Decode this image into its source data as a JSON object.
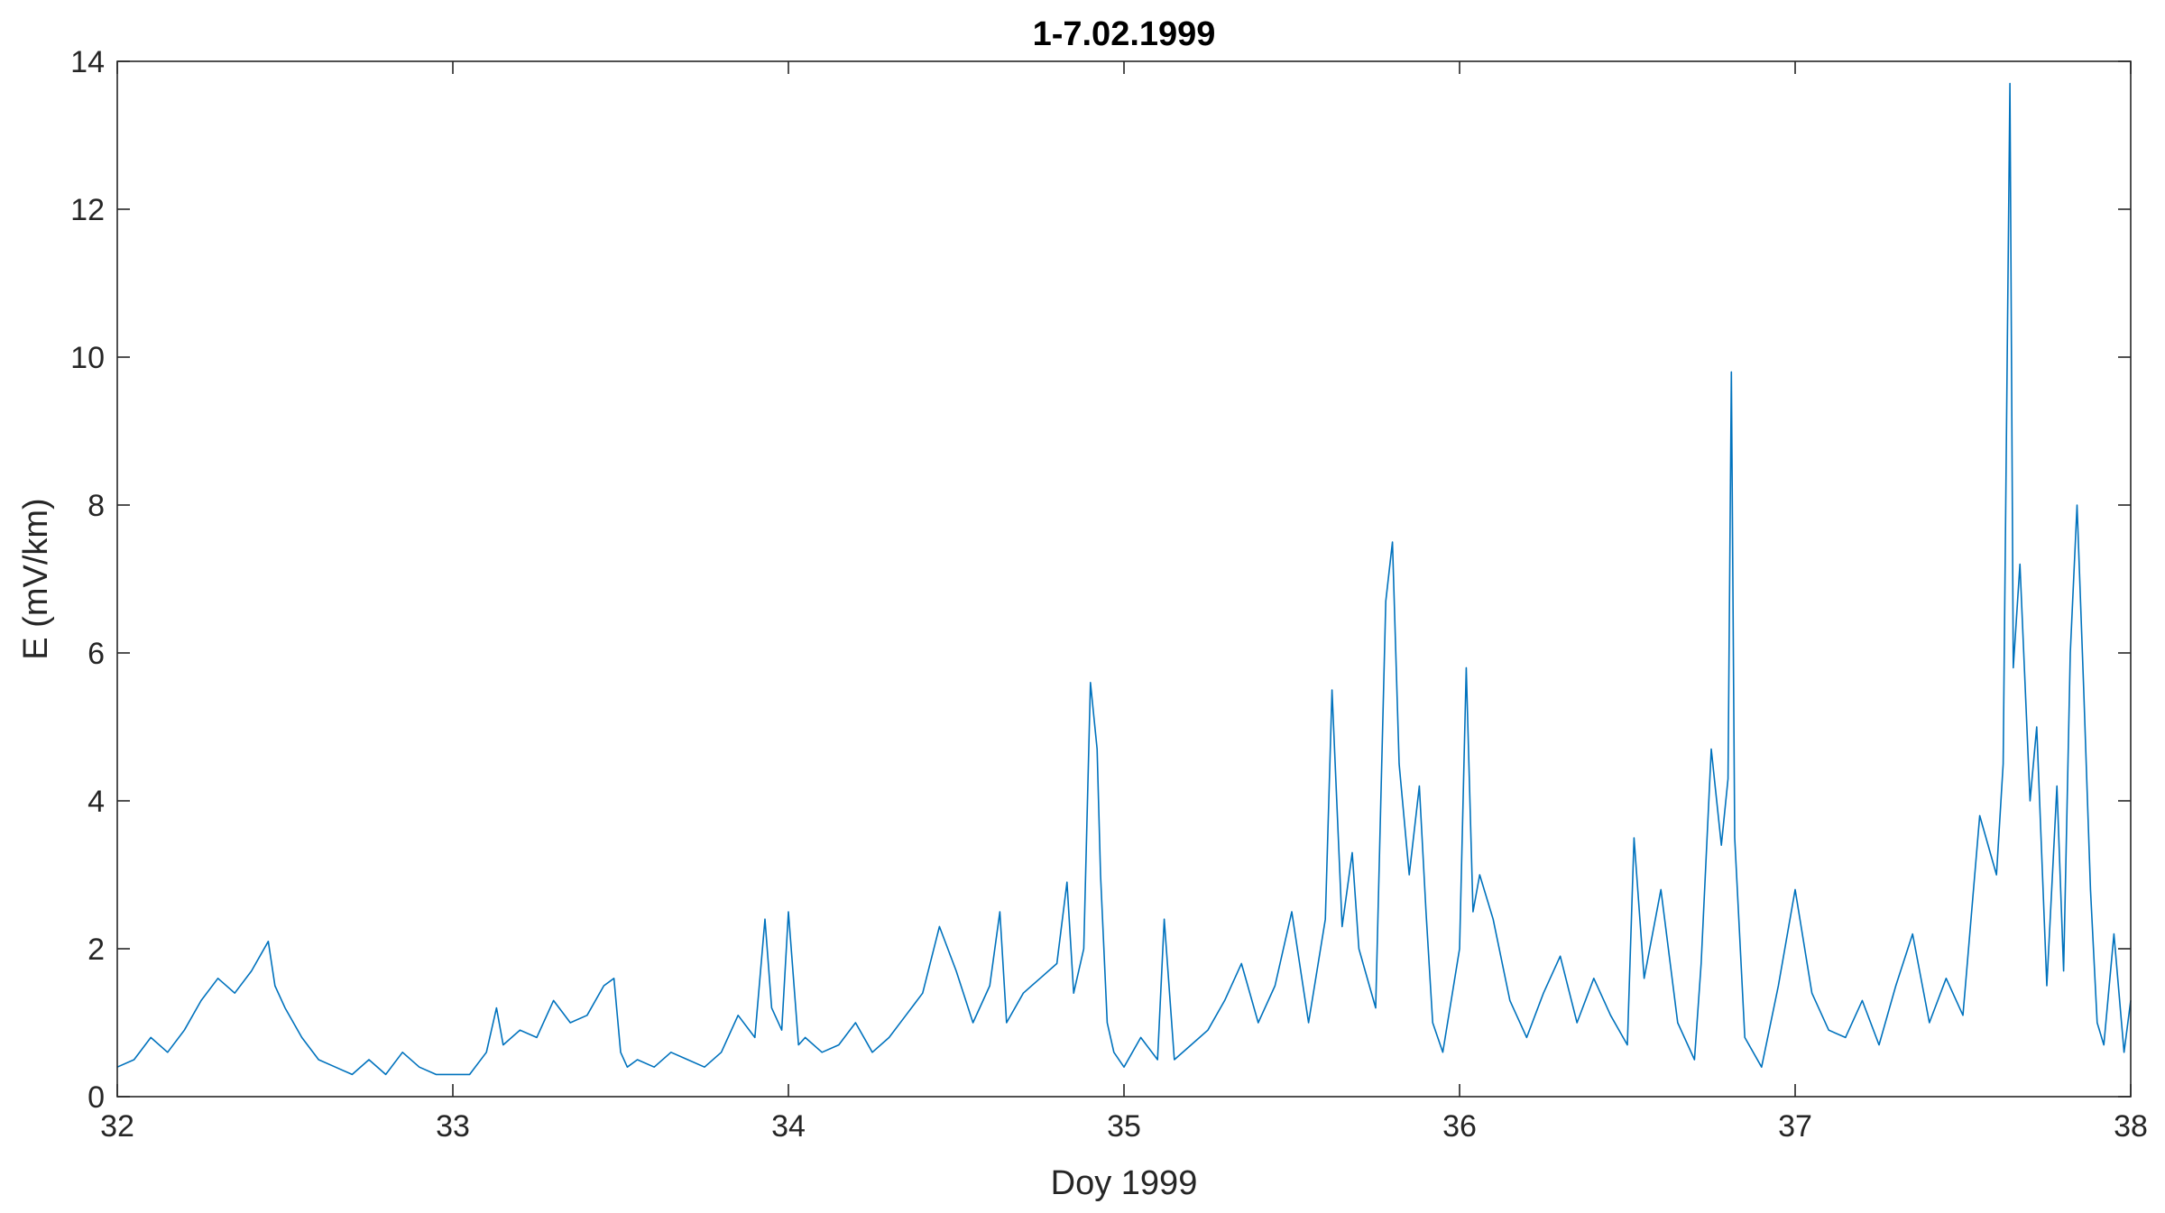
{
  "chart_data": {
    "type": "line",
    "title": "1-7.02.1999",
    "xlabel": "Doy 1999",
    "ylabel": "E (mV/km)",
    "xlim": [
      32,
      38
    ],
    "ylim": [
      0,
      14
    ],
    "xticks": [
      32,
      33,
      34,
      35,
      36,
      37,
      38
    ],
    "yticks": [
      0,
      2,
      4,
      6,
      8,
      10,
      12,
      14
    ],
    "grid": false,
    "box": true,
    "series": [
      {
        "color": "#0072BD",
        "x": [
          32.0,
          32.05,
          32.1,
          32.15,
          32.2,
          32.25,
          32.3,
          32.35,
          32.4,
          32.45,
          32.47,
          32.5,
          32.55,
          32.6,
          32.65,
          32.7,
          32.75,
          32.8,
          32.85,
          32.9,
          32.95,
          33.0,
          33.05,
          33.1,
          33.13,
          33.15,
          33.2,
          33.25,
          33.3,
          33.35,
          33.4,
          33.45,
          33.48,
          33.5,
          33.52,
          33.55,
          33.6,
          33.65,
          33.7,
          33.75,
          33.8,
          33.85,
          33.9,
          33.93,
          33.95,
          33.98,
          34.0,
          34.03,
          34.05,
          34.1,
          34.15,
          34.2,
          34.25,
          34.3,
          34.35,
          34.4,
          34.45,
          34.5,
          34.55,
          34.6,
          34.63,
          34.65,
          34.7,
          34.75,
          34.8,
          34.83,
          34.85,
          34.88,
          34.9,
          34.92,
          34.93,
          34.95,
          34.97,
          35.0,
          35.05,
          35.1,
          35.12,
          35.15,
          35.2,
          35.25,
          35.3,
          35.35,
          35.4,
          35.45,
          35.5,
          35.55,
          35.6,
          35.62,
          35.65,
          35.68,
          35.7,
          35.75,
          35.78,
          35.8,
          35.82,
          35.85,
          35.88,
          35.9,
          35.92,
          35.95,
          36.0,
          36.02,
          36.04,
          36.06,
          36.1,
          36.15,
          36.2,
          36.25,
          36.3,
          36.35,
          36.4,
          36.45,
          36.5,
          36.52,
          36.55,
          36.6,
          36.65,
          36.7,
          36.72,
          36.75,
          36.78,
          36.8,
          36.81,
          36.82,
          36.85,
          36.9,
          36.95,
          37.0,
          37.05,
          37.1,
          37.15,
          37.2,
          37.25,
          37.3,
          37.35,
          37.4,
          37.45,
          37.5,
          37.55,
          37.6,
          37.62,
          37.64,
          37.65,
          37.67,
          37.7,
          37.72,
          37.75,
          37.78,
          37.8,
          37.82,
          37.84,
          37.86,
          37.88,
          37.9,
          37.92,
          37.95,
          37.98,
          38.0
        ],
        "y": [
          0.4,
          0.5,
          0.8,
          0.6,
          0.9,
          1.3,
          1.6,
          1.4,
          1.7,
          2.1,
          1.5,
          1.2,
          0.8,
          0.5,
          0.4,
          0.3,
          0.5,
          0.3,
          0.6,
          0.4,
          0.3,
          0.3,
          0.3,
          0.6,
          1.2,
          0.7,
          0.9,
          0.8,
          1.3,
          1.0,
          1.1,
          1.5,
          1.6,
          0.6,
          0.4,
          0.5,
          0.4,
          0.6,
          0.5,
          0.4,
          0.6,
          1.1,
          0.8,
          2.4,
          1.2,
          0.9,
          2.5,
          0.7,
          0.8,
          0.6,
          0.7,
          1.0,
          0.6,
          0.8,
          1.1,
          1.4,
          2.3,
          1.7,
          1.0,
          1.5,
          2.5,
          1.0,
          1.4,
          1.6,
          1.8,
          2.9,
          1.4,
          2.0,
          5.6,
          4.7,
          3.0,
          1.0,
          0.6,
          0.4,
          0.8,
          0.5,
          2.4,
          0.5,
          0.7,
          0.9,
          1.3,
          1.8,
          1.0,
          1.5,
          2.5,
          1.0,
          2.4,
          5.5,
          2.3,
          3.3,
          2.0,
          1.2,
          6.7,
          7.5,
          4.5,
          3.0,
          4.2,
          2.5,
          1.0,
          0.6,
          2.0,
          5.8,
          2.5,
          3.0,
          2.4,
          1.3,
          0.8,
          1.4,
          1.9,
          1.0,
          1.6,
          1.1,
          0.7,
          3.5,
          1.6,
          2.8,
          1.0,
          0.5,
          1.8,
          4.7,
          3.4,
          4.3,
          9.8,
          3.5,
          0.8,
          0.4,
          1.5,
          2.8,
          1.4,
          0.9,
          0.8,
          1.3,
          0.7,
          1.5,
          2.2,
          1.0,
          1.6,
          1.1,
          3.8,
          3.0,
          4.5,
          13.7,
          5.8,
          7.2,
          4.0,
          5.0,
          1.5,
          4.2,
          1.7,
          6.0,
          8.0,
          5.5,
          2.8,
          1.0,
          0.7,
          2.2,
          0.6,
          1.3
        ]
      }
    ]
  }
}
